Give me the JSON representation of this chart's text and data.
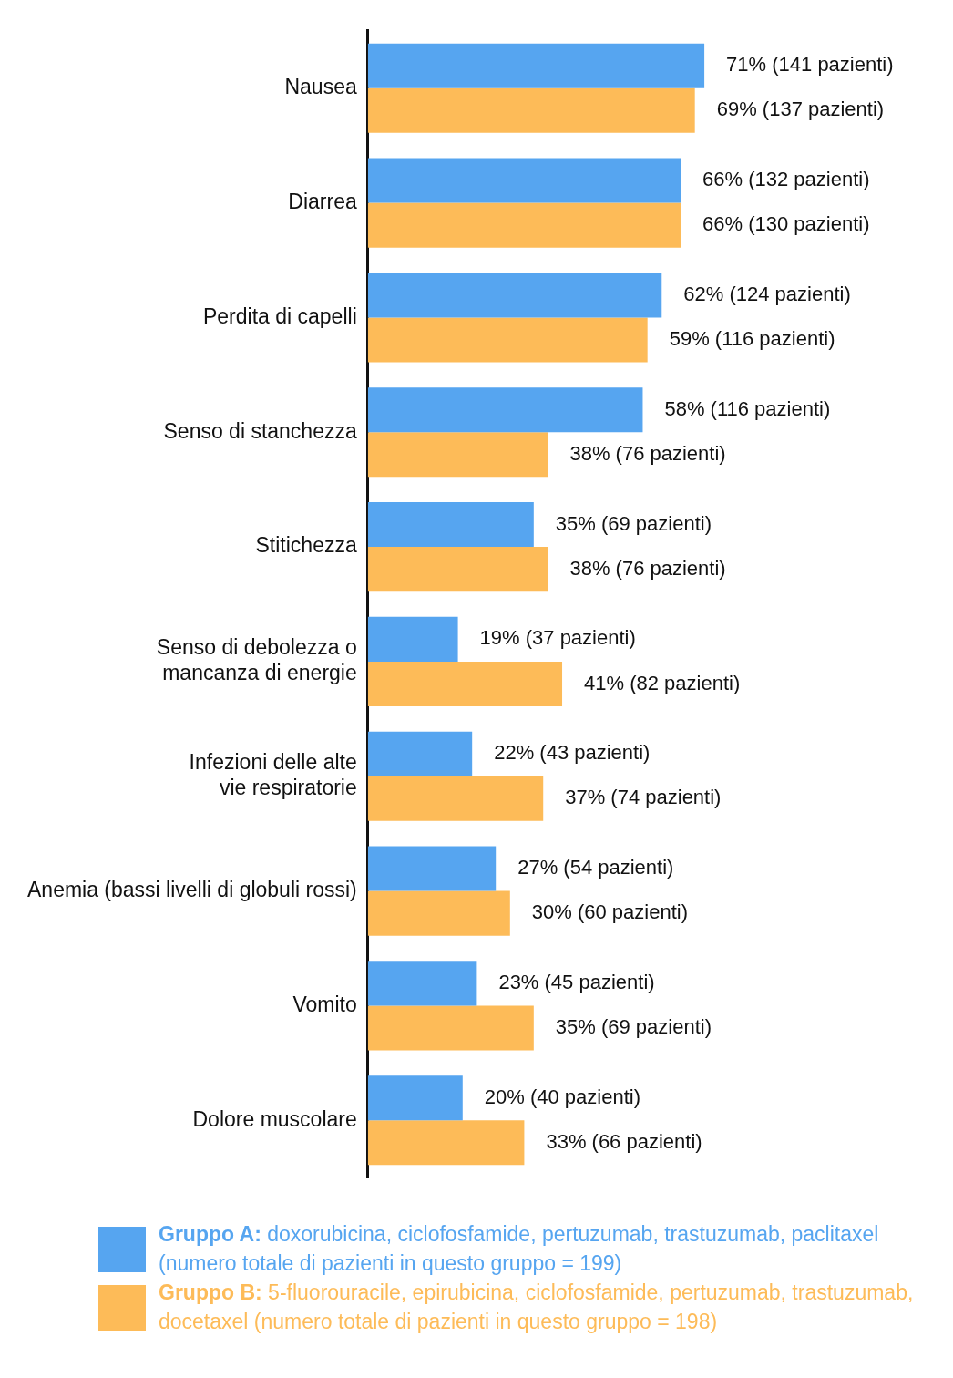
{
  "chart_data": {
    "type": "bar",
    "orientation": "horizontal",
    "categories": [
      "Nausea",
      "Diarrea",
      "Perdita di capelli",
      "Senso di stanchezza",
      "Stitichezza",
      "Senso di debolezza o mancanza di energie",
      "Infezioni delle alte vie respiratorie",
      "Anemia (bassi livelli di globuli rossi)",
      "Vomito",
      "Dolore muscolare"
    ],
    "series": [
      {
        "name": "Gruppo A: doxorubicina, ciclofosfamide, pertuzumab, trastuzumab, paclitaxel (numero totale di pazienti in questo gruppo = 199)",
        "color": "#56a5f0",
        "values": [
          71,
          66,
          62,
          58,
          35,
          19,
          22,
          27,
          23,
          20
        ],
        "value_labels": [
          "71% (141 pazienti)",
          "66% (132 pazienti)",
          "62% (124 pazienti)",
          "58% (116 pazienti)",
          "35% (69 pazienti)",
          "19% (37 pazienti)",
          "22% (43 pazienti)",
          "27% (54 pazienti)",
          "23% (45 pazienti)",
          "20% (40 pazienti)"
        ]
      },
      {
        "name": "Gruppo B: 5-fluorouracile, epirubicina, ciclofosfamide, pertuzumab, trastuzumab, docetaxel (numero totale di pazienti in questo gruppo = 198)",
        "color": "#fdbb58",
        "values": [
          69,
          66,
          59,
          38,
          38,
          41,
          37,
          30,
          35,
          33
        ],
        "value_labels": [
          "69% (137 pazienti)",
          "66% (130 pazienti)",
          "59% (116 pazienti)",
          "38% (76 pazienti)",
          "38% (76 pazienti)",
          "41% (82 pazienti)",
          "37% (74 pazienti)",
          "30% (60 pazienti)",
          "35% (69 pazienti)",
          "33% (66 pazienti)"
        ]
      }
    ],
    "tick_labels": "y",
    "grid": false,
    "legend": "bottom"
  }
}
